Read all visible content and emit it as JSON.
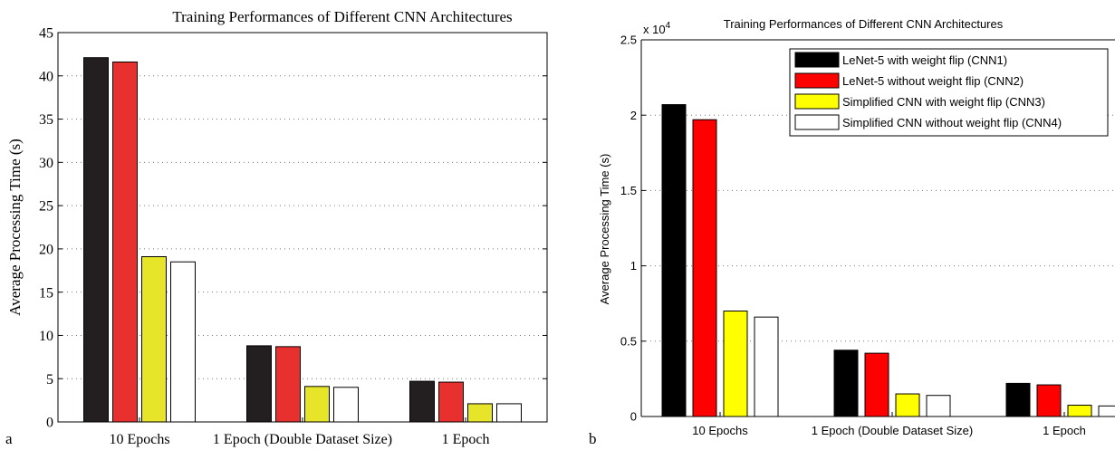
{
  "chart_data": [
    {
      "panel_label": "a",
      "type": "bar",
      "title": "Training Performances of Different CNN Architectures",
      "xlabel": "",
      "ylabel": "Average Processing Time (s)",
      "ylim": [
        0,
        45
      ],
      "yticks": [
        "0",
        "5",
        "10",
        "15",
        "20",
        "25",
        "30",
        "35",
        "40",
        "45"
      ],
      "grid": "horizontal-dotted",
      "categories": [
        "10 Epochs",
        "1 Epoch (Double Dataset Size)",
        "1 Epoch"
      ],
      "series": [
        {
          "values": [
            42.1,
            8.8,
            4.7
          ],
          "color": "#231f20"
        },
        {
          "values": [
            41.6,
            8.7,
            4.6
          ],
          "color": "#e8312f"
        },
        {
          "values": [
            19.1,
            4.1,
            2.1
          ],
          "color": "#e6e52a"
        },
        {
          "values": [
            18.5,
            4.0,
            2.1
          ],
          "color": "#ffffff"
        }
      ]
    },
    {
      "panel_label": "b",
      "type": "bar",
      "title": "Training Performances of Different CNN Architectures",
      "xlabel": "",
      "ylabel": "Average Processing Time (s)",
      "ylim": [
        0,
        2.5
      ],
      "yticks": [
        "0",
        "0.5",
        "1",
        "1.5",
        "2",
        "2.5"
      ],
      "scale_factor_label": "x 10",
      "scale_factor_exponent": "4",
      "grid": "horizontal-dotted",
      "legend_position": "top-right",
      "categories": [
        "10 Epochs",
        "1 Epoch (Double Dataset Size)",
        "1 Epoch"
      ],
      "series": [
        {
          "name": "LeNet-5 with weight flip (CNN1)",
          "values": [
            2.07,
            0.44,
            0.22
          ],
          "color": "#000000"
        },
        {
          "name": "LeNet-5 without weight flip (CNN2)",
          "values": [
            1.97,
            0.42,
            0.21
          ],
          "color": "#ff0000"
        },
        {
          "name": "Simplified CNN with weight flip (CNN3)",
          "values": [
            0.7,
            0.15,
            0.075
          ],
          "color": "#ffff00"
        },
        {
          "name": "Simplified CNN without weight flip (CNN4)",
          "values": [
            0.66,
            0.14,
            0.07
          ],
          "color": "#ffffff"
        }
      ]
    }
  ]
}
